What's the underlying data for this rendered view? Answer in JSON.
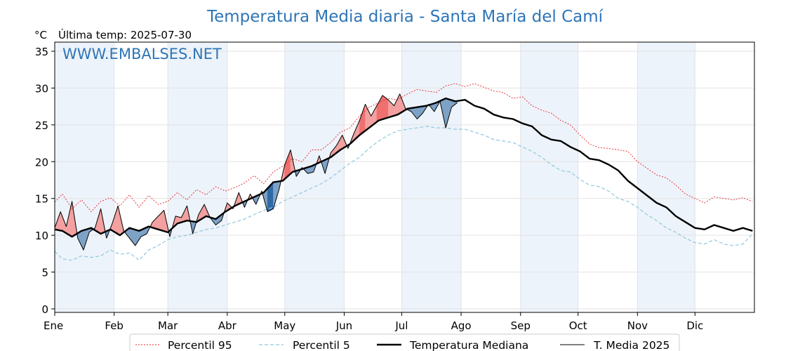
{
  "chart_data": {
    "type": "line",
    "title": "Temperatura Media diaria - Santa María del Camí",
    "unit_label": "°C",
    "last_temp_label": "Última temp: 2025-07-30",
    "watermark": "WWW.EMBALSES.NET",
    "ylim": [
      0,
      36
    ],
    "yticks": [
      0,
      5,
      10,
      15,
      20,
      25,
      30,
      35
    ],
    "months": [
      "Ene",
      "Feb",
      "Mar",
      "Abr",
      "May",
      "Jun",
      "Jul",
      "Ago",
      "Sep",
      "Oct",
      "Nov",
      "Dic"
    ],
    "month_start_days": [
      0,
      31,
      59,
      90,
      120,
      151,
      181,
      212,
      243,
      273,
      304,
      334
    ],
    "days_in_year": 365,
    "grid": true,
    "legend_position": "bottom",
    "series": [
      {
        "name": "Percentil 95",
        "key": "p95",
        "x": [
          0,
          4,
          9,
          14,
          19,
          24,
          29,
          34,
          39,
          44,
          49,
          54,
          59,
          64,
          69,
          74,
          79,
          84,
          89,
          94,
          99,
          104,
          109,
          114,
          119,
          124,
          129,
          134,
          139,
          144,
          149,
          154,
          159,
          164,
          169,
          174,
          179,
          184,
          189,
          194,
          199,
          204,
          209,
          214,
          219,
          224,
          229,
          234,
          239,
          244,
          249,
          254,
          259,
          264,
          269,
          274,
          279,
          284,
          289,
          294,
          299,
          304,
          309,
          314,
          319,
          324,
          329,
          334,
          339,
          344,
          349,
          354,
          359,
          364
        ],
        "y": [
          14.5,
          15.6,
          13.6,
          14.8,
          13.2,
          14.6,
          15.1,
          14.0,
          15.5,
          13.8,
          15.4,
          14.2,
          14.6,
          15.8,
          14.8,
          16.2,
          15.5,
          16.6,
          16.0,
          16.5,
          17.1,
          18.1,
          17.0,
          18.6,
          19.4,
          20.4,
          20.0,
          21.6,
          21.6,
          22.6,
          24.0,
          24.6,
          26.2,
          27.4,
          28.0,
          28.6,
          28.4,
          29.2,
          29.8,
          29.6,
          29.4,
          30.3,
          30.6,
          30.2,
          30.6,
          30.1,
          29.6,
          29.4,
          28.6,
          28.8,
          27.6,
          27.0,
          26.6,
          25.6,
          25.0,
          23.6,
          22.4,
          21.9,
          21.8,
          21.6,
          21.4,
          20.0,
          19.1,
          18.2,
          17.8,
          16.8,
          15.6,
          15.0,
          14.4,
          15.2,
          15.0,
          14.8,
          15.1,
          14.6
        ]
      },
      {
        "name": "Percentil 5",
        "key": "p5",
        "x": [
          0,
          4,
          9,
          14,
          19,
          24,
          29,
          34,
          39,
          44,
          49,
          54,
          59,
          64,
          69,
          74,
          79,
          84,
          89,
          94,
          99,
          104,
          109,
          114,
          119,
          124,
          129,
          134,
          139,
          144,
          149,
          154,
          159,
          164,
          169,
          174,
          179,
          184,
          189,
          194,
          199,
          204,
          209,
          214,
          219,
          224,
          229,
          234,
          239,
          244,
          249,
          254,
          259,
          264,
          269,
          274,
          279,
          284,
          289,
          294,
          299,
          304,
          309,
          314,
          319,
          324,
          329,
          334,
          339,
          344,
          349,
          354,
          359,
          364
        ],
        "y": [
          7.8,
          6.8,
          6.6,
          7.2,
          7.0,
          7.2,
          8.0,
          7.4,
          7.6,
          6.6,
          8.0,
          8.6,
          9.4,
          9.8,
          10.0,
          10.4,
          10.8,
          11.0,
          11.4,
          11.8,
          12.2,
          12.8,
          13.4,
          13.8,
          14.6,
          15.2,
          15.8,
          16.4,
          17.0,
          17.8,
          18.8,
          19.8,
          20.6,
          21.8,
          22.8,
          23.6,
          24.2,
          24.4,
          24.6,
          24.8,
          24.6,
          24.6,
          24.4,
          24.4,
          24.0,
          23.6,
          23.0,
          22.8,
          22.6,
          22.0,
          21.4,
          20.6,
          19.6,
          18.8,
          18.6,
          17.6,
          16.8,
          16.6,
          16.0,
          15.0,
          14.6,
          13.8,
          12.8,
          12.0,
          11.0,
          10.4,
          9.6,
          9.0,
          8.8,
          9.4,
          8.8,
          8.6,
          8.8,
          10.2
        ]
      },
      {
        "name": "Temperatura Mediana",
        "key": "median",
        "x": [
          0,
          4,
          9,
          14,
          19,
          24,
          29,
          34,
          39,
          44,
          49,
          54,
          59,
          64,
          69,
          74,
          79,
          84,
          89,
          94,
          99,
          104,
          109,
          114,
          119,
          124,
          129,
          134,
          139,
          144,
          149,
          154,
          159,
          164,
          169,
          174,
          179,
          184,
          189,
          194,
          199,
          204,
          209,
          214,
          219,
          224,
          229,
          234,
          239,
          244,
          249,
          254,
          259,
          264,
          269,
          274,
          279,
          284,
          289,
          294,
          299,
          304,
          309,
          314,
          319,
          324,
          329,
          334,
          339,
          344,
          349,
          354,
          359,
          364
        ],
        "y": [
          10.8,
          10.6,
          9.8,
          10.6,
          11.0,
          10.2,
          10.8,
          10.0,
          11.0,
          10.6,
          11.2,
          10.8,
          10.4,
          11.6,
          12.0,
          11.8,
          12.6,
          12.2,
          13.2,
          14.0,
          14.6,
          15.2,
          15.8,
          17.2,
          17.4,
          18.6,
          19.0,
          19.4,
          20.0,
          20.6,
          21.6,
          22.4,
          23.6,
          24.6,
          25.6,
          26.0,
          26.4,
          27.2,
          27.4,
          27.6,
          28.0,
          28.6,
          28.2,
          28.4,
          27.6,
          27.2,
          26.4,
          26.0,
          25.8,
          25.2,
          24.8,
          23.6,
          23.0,
          22.8,
          22.0,
          21.4,
          20.4,
          20.2,
          19.6,
          18.8,
          17.4,
          16.4,
          15.4,
          14.4,
          13.8,
          12.6,
          11.8,
          11.0,
          10.8,
          11.4,
          11.0,
          10.6,
          11.0,
          10.6
        ]
      },
      {
        "name": "T. Media 2025",
        "key": "year2025",
        "x": [
          0,
          3,
          6,
          9,
          12,
          15,
          18,
          21,
          24,
          27,
          30,
          33,
          36,
          39,
          42,
          45,
          48,
          51,
          54,
          57,
          60,
          63,
          66,
          69,
          72,
          75,
          78,
          81,
          84,
          87,
          90,
          93,
          96,
          99,
          102,
          105,
          108,
          111,
          114,
          117,
          120,
          123,
          126,
          129,
          132,
          135,
          138,
          141,
          144,
          147,
          150,
          153,
          156,
          159,
          162,
          165,
          168,
          171,
          174,
          177,
          180,
          183,
          186,
          189,
          192,
          195,
          198,
          201,
          204,
          207,
          210
        ],
        "y": [
          11.0,
          13.2,
          11.2,
          14.6,
          9.6,
          8.0,
          10.4,
          11.0,
          13.6,
          9.6,
          11.6,
          14.0,
          10.6,
          9.6,
          8.6,
          9.8,
          10.2,
          11.8,
          12.6,
          13.4,
          9.8,
          12.6,
          12.4,
          14.0,
          10.2,
          12.8,
          14.2,
          12.4,
          11.4,
          12.0,
          14.4,
          13.6,
          15.8,
          13.8,
          15.6,
          14.2,
          16.0,
          13.2,
          13.6,
          16.2,
          19.6,
          21.6,
          18.0,
          19.2,
          18.4,
          18.6,
          20.8,
          18.4,
          21.2,
          22.2,
          23.6,
          21.8,
          23.8,
          25.6,
          27.8,
          26.2,
          27.6,
          29.0,
          28.4,
          27.6,
          29.2,
          27.2,
          26.8,
          25.8,
          26.6,
          27.8,
          26.8,
          28.2,
          24.6,
          27.4,
          28.0
        ]
      }
    ]
  },
  "legend": {
    "items": [
      {
        "label": "Percentil 95"
      },
      {
        "label": "Percentil 5"
      },
      {
        "label": "Temperatura Mediana"
      },
      {
        "label": "T. Media 2025"
      }
    ]
  },
  "colors": {
    "title": "#2e75b6",
    "p95": "#e8262b",
    "p5": "#8fc7de",
    "median": "#000000",
    "year2025": "#000000",
    "above_fill": "#f2a0a0",
    "above_fill_strong": "#f07070",
    "below_fill": "#7ea2c6",
    "below_fill_strong": "#2f6aa5",
    "band": "#edf3fa",
    "grid": "#e3e3e3"
  }
}
